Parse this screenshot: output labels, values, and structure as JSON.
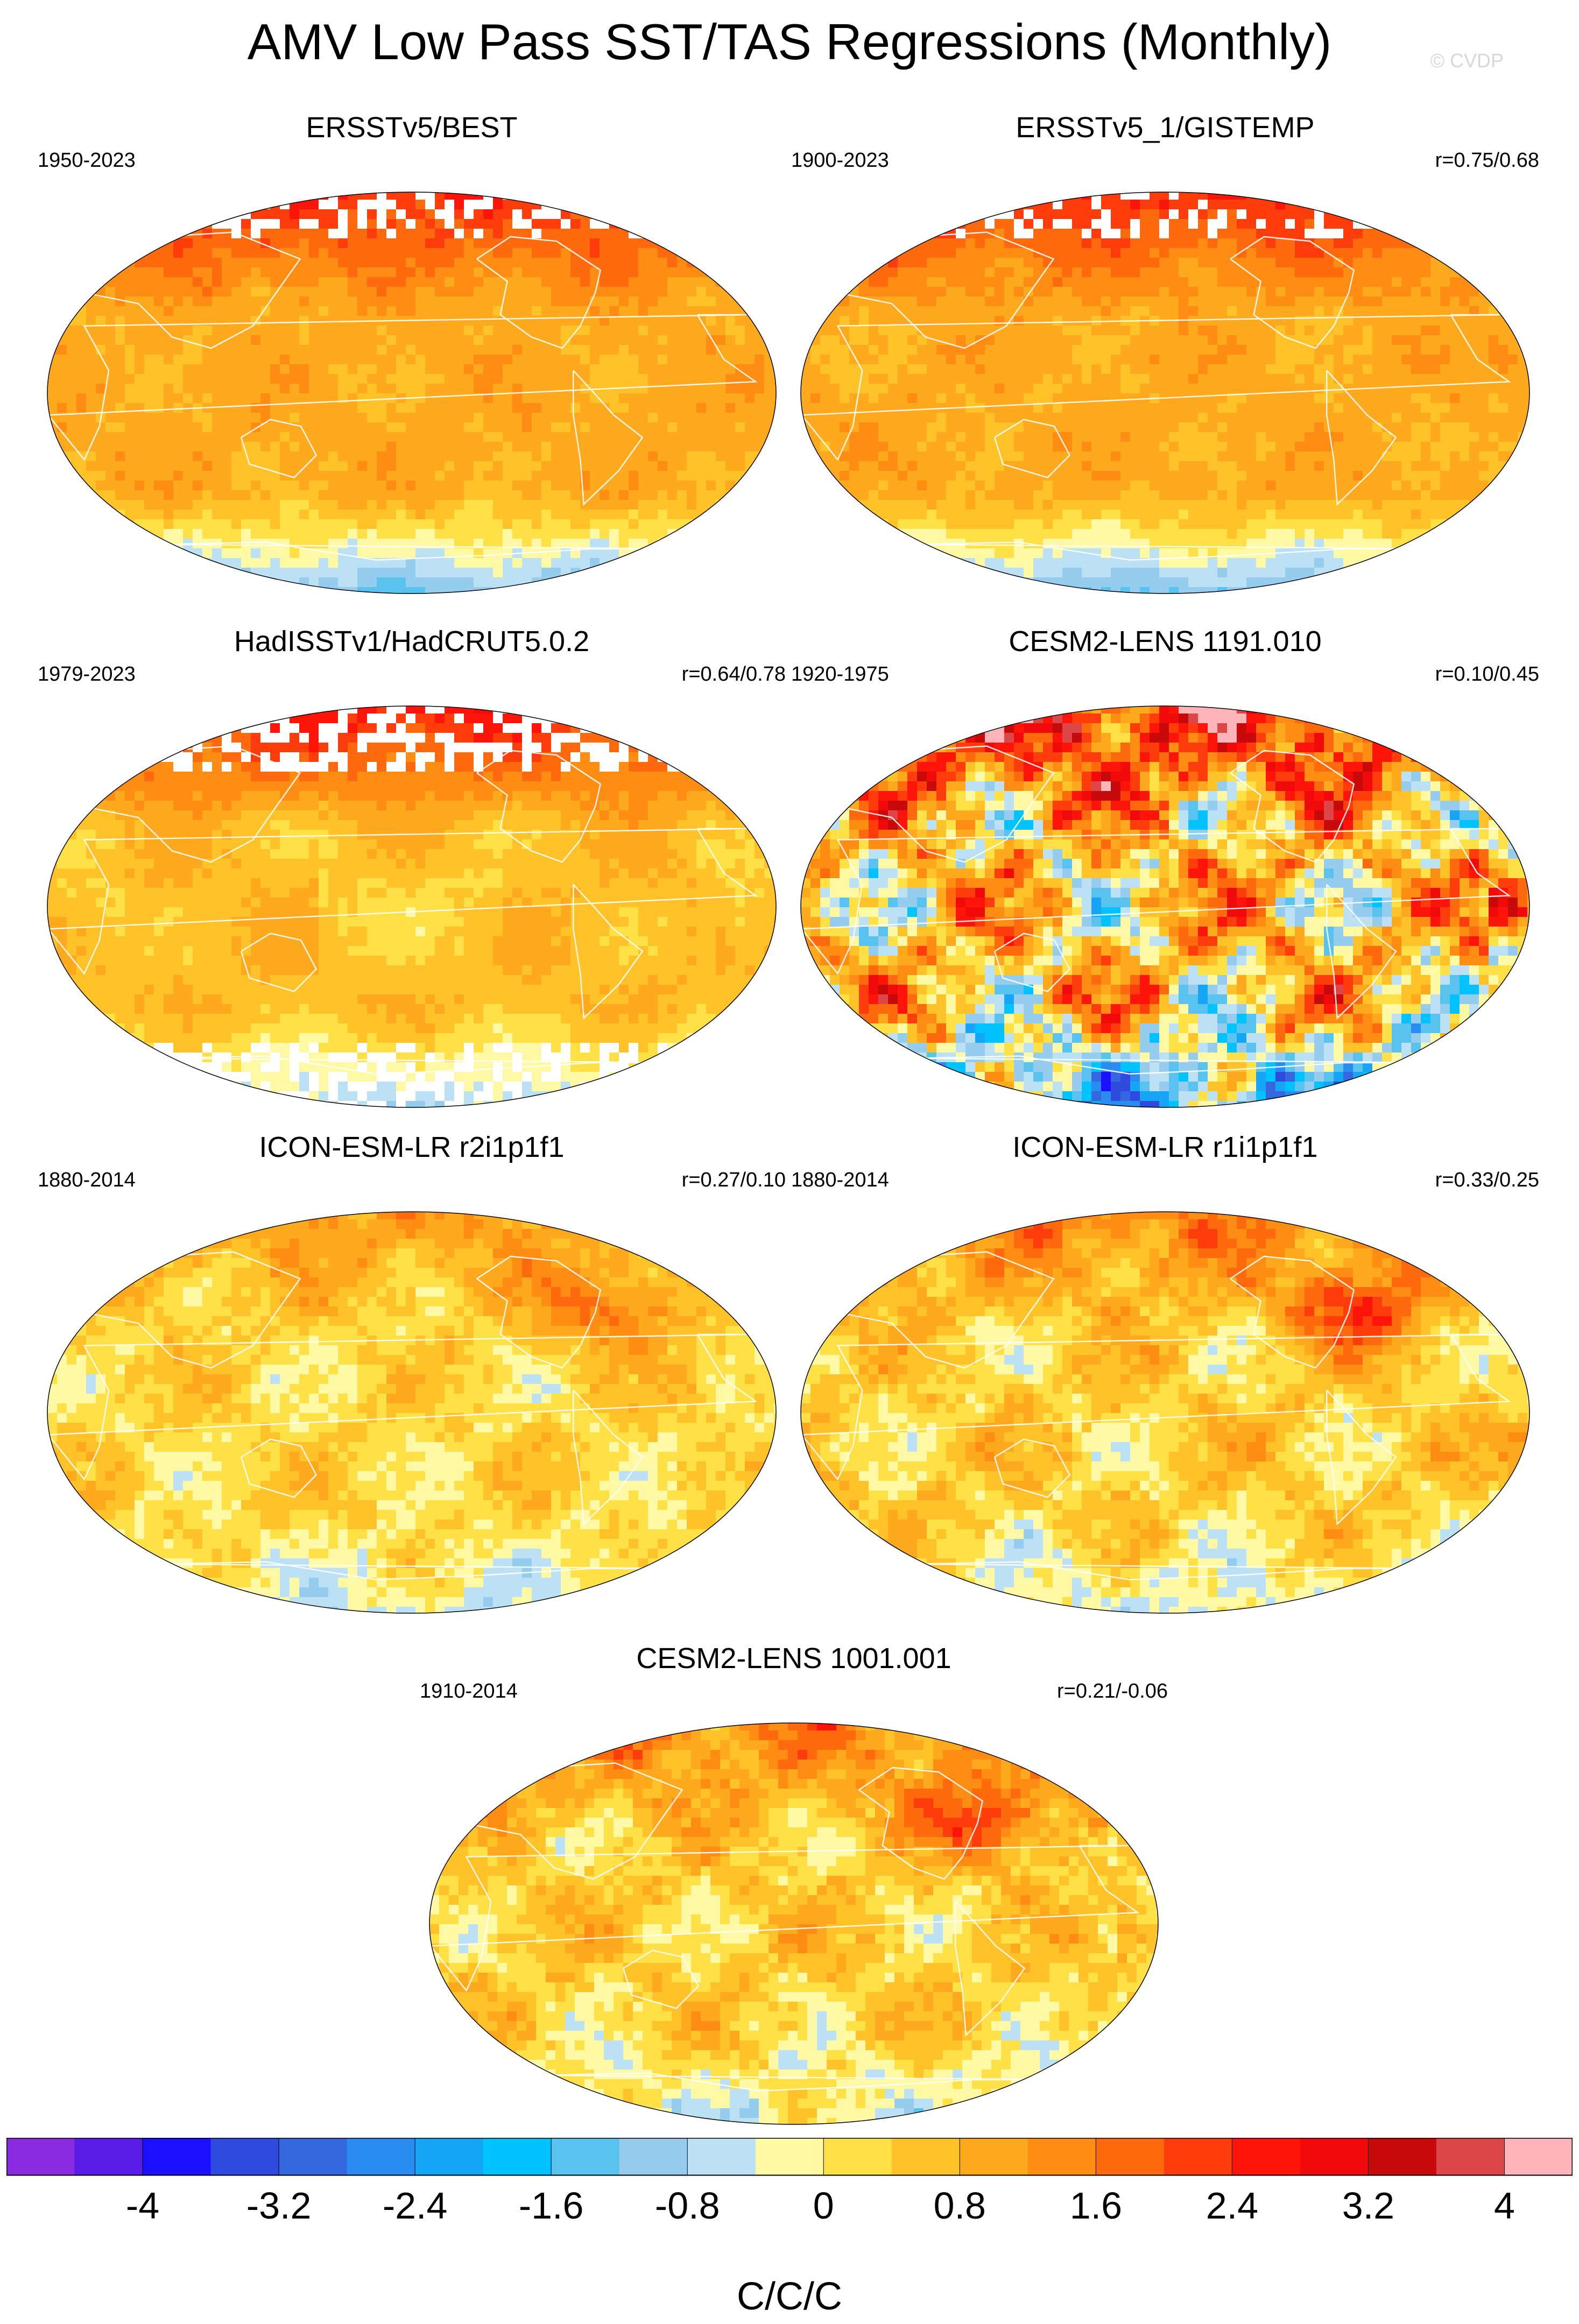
{
  "title": "AMV Low Pass SST/TAS Regressions (Monthly)",
  "credit": "© CVDP",
  "chart_data": {
    "type": "heatmap",
    "projection": "Robinson (Pacific-centered)",
    "panels": [
      {
        "title": "ERSSTv5/BEST",
        "period": "1950-2023",
        "correlation": "",
        "pattern": "obs"
      },
      {
        "title": "ERSSTv5_1/GISTEMP",
        "period": "1900-2023",
        "correlation": "r=0.75/0.68",
        "pattern": "obs"
      },
      {
        "title": "HadISSTv1/HadCRUT5.0.2",
        "period": "1979-2023",
        "correlation": "r=0.64/0.78",
        "pattern": "obs-gaps"
      },
      {
        "title": "CESM2-LENS 1191.010",
        "period": "1920-1975",
        "correlation": "r=0.10/0.45",
        "pattern": "noisy"
      },
      {
        "title": "ICON-ESM-LR r2i1p1f1",
        "period": "1880-2014",
        "correlation": "r=0.27/0.10",
        "pattern": "model-weak"
      },
      {
        "title": "ICON-ESM-LR r1i1p1f1",
        "period": "1880-2014",
        "correlation": "r=0.33/0.25",
        "pattern": "model"
      },
      {
        "title": "CESM2-LENS 1001.001",
        "period": "1910-2014",
        "correlation": "r=0.21/-0.06",
        "pattern": "model"
      }
    ],
    "colorbar": {
      "unit": "C/C/C",
      "levels": [
        -4.4,
        -4,
        -3.6,
        -3.2,
        -2.8,
        -2.4,
        -2,
        -1.6,
        -1.2,
        -0.8,
        -0.4,
        0,
        0.4,
        0.8,
        1.2,
        1.6,
        2,
        2.4,
        2.8,
        3.2,
        3.6,
        4,
        4.4
      ],
      "tick_labels": [
        "-4",
        "-3.2",
        "-2.4",
        "-1.6",
        "-0.8",
        "0",
        "0.8",
        "1.6",
        "2.4",
        "3.2",
        "4"
      ],
      "tick_values": [
        -4,
        -3.2,
        -2.4,
        -1.6,
        -0.8,
        0,
        0.8,
        1.6,
        2.4,
        3.2,
        4
      ],
      "colors": [
        "#8a2be2",
        "#5a1de8",
        "#1a0fff",
        "#2f4bdf",
        "#3568e0",
        "#2a8cf0",
        "#16a6f5",
        "#00c2ff",
        "#5ac2ef",
        "#96cdef",
        "#bce0f4",
        "#fff8a4",
        "#ffe046",
        "#ffc229",
        "#ffaa1e",
        "#ff8d14",
        "#ff6a0f",
        "#ff3c0c",
        "#ff140a",
        "#f00a0a",
        "#c80a0a",
        "#dc4646",
        "#ffb4b9"
      ]
    }
  }
}
